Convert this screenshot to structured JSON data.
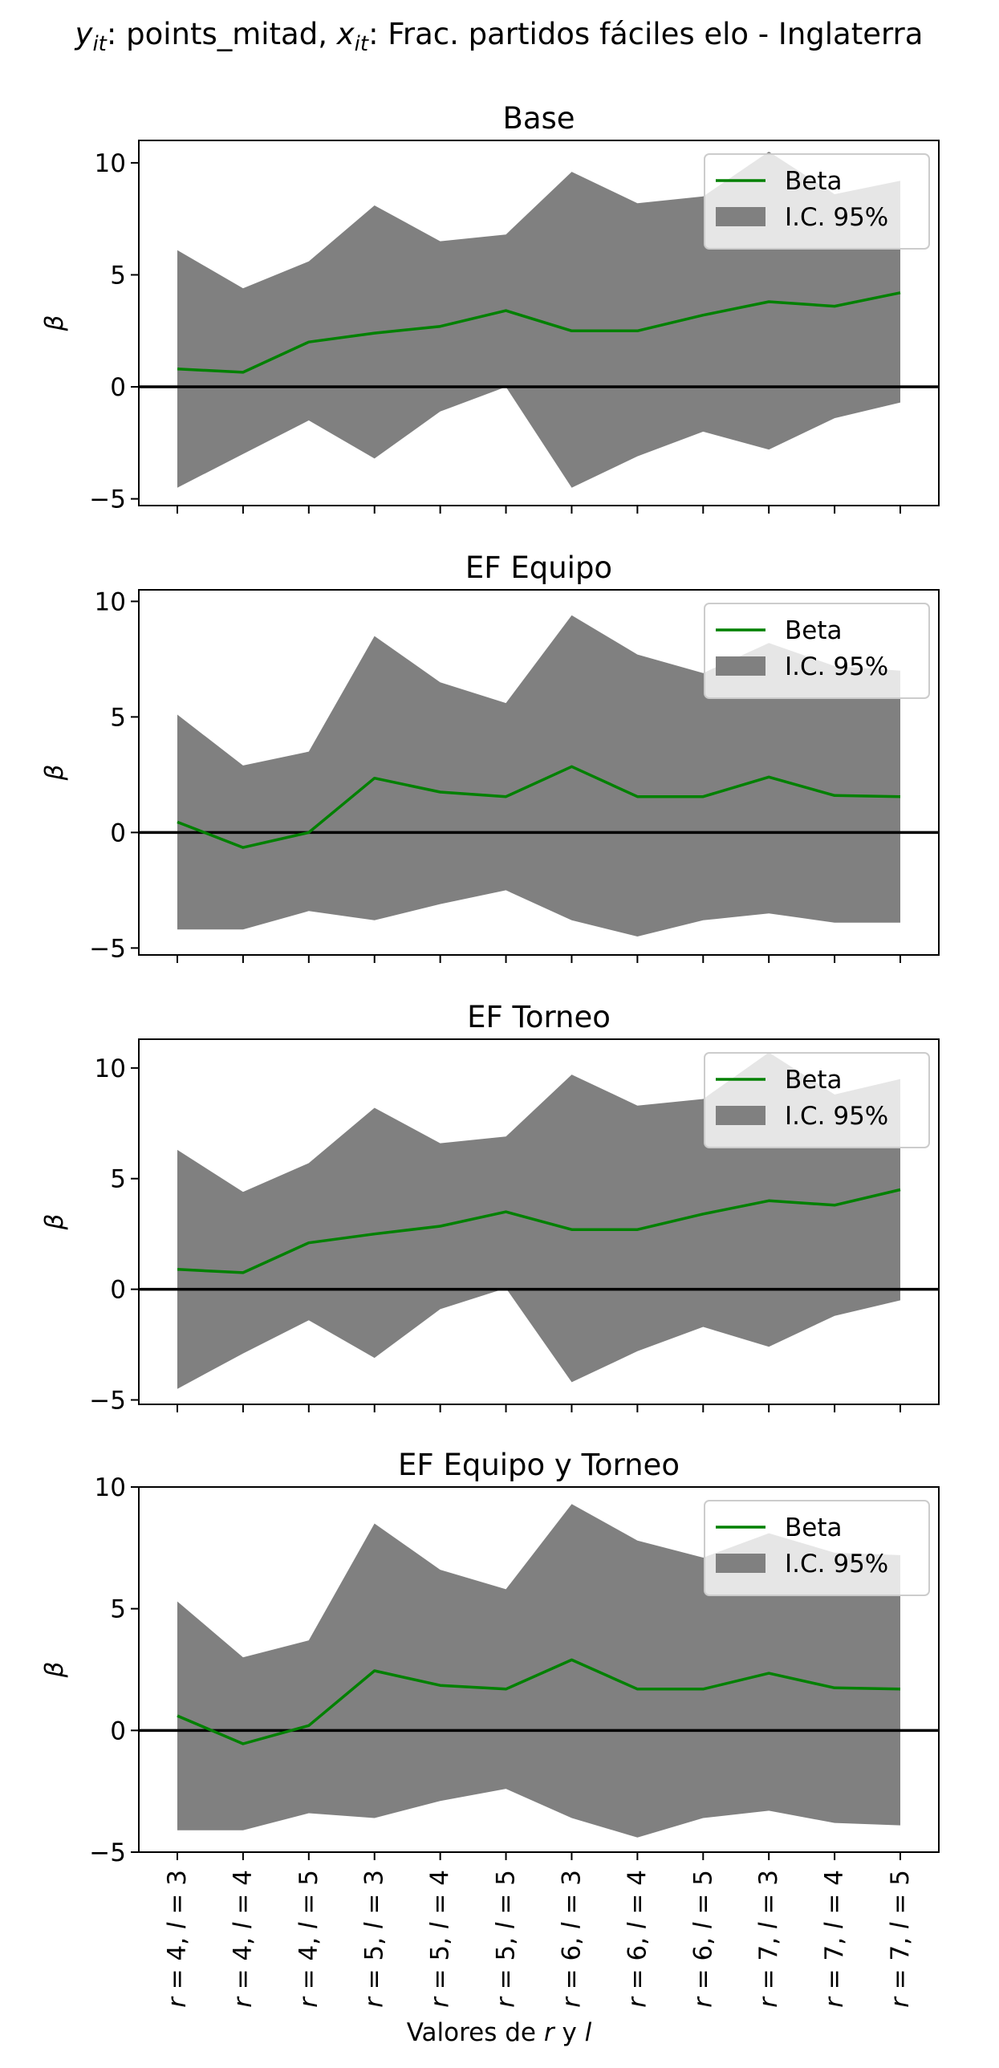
{
  "figure": {
    "suptitle": "yit: points_mitad, xit: Frac. partidos fáciles elo - Inglaterra",
    "xlabel": "Valores de r y l",
    "ylabel": "β",
    "legend": {
      "line": "Beta",
      "band": "I.C. 95%",
      "placement": "upper-right"
    }
  },
  "colors": {
    "beta_line": "#008000",
    "ci_band": "#808080",
    "zero_line": "#000000"
  },
  "chart_data": [
    {
      "type": "line",
      "title": "Base",
      "ylabel": "β",
      "ylim": [
        -5.3,
        11
      ],
      "yticks": [
        "10",
        "5",
        "0",
        "−5"
      ],
      "yticks_values": [
        10,
        5,
        0,
        -5
      ],
      "categories": [
        "r = 4, l = 3",
        "r = 4, l = 4",
        "r = 4, l = 5",
        "r = 5, l = 3",
        "r = 5, l = 4",
        "r = 5, l = 5",
        "r = 6, l = 3",
        "r = 6, l = 4",
        "r = 6, l = 5",
        "r = 7, l = 3",
        "r = 7, l = 4",
        "r = 7, l = 5"
      ],
      "series": [
        {
          "name": "Beta",
          "values": [
            0.8,
            0.65,
            2.0,
            2.4,
            2.7,
            3.4,
            2.5,
            2.5,
            3.2,
            3.8,
            3.6,
            4.2
          ]
        },
        {
          "name": "I.C. 95%",
          "upper": [
            6.1,
            4.4,
            5.6,
            8.1,
            6.5,
            6.8,
            9.6,
            8.2,
            8.5,
            10.5,
            8.6,
            9.2
          ],
          "lower": [
            -4.5,
            -3.0,
            -1.5,
            -3.2,
            -1.1,
            0.0,
            -4.5,
            -3.1,
            -2.0,
            -2.8,
            -1.4,
            -0.7
          ]
        }
      ]
    },
    {
      "type": "line",
      "title": "EF Equipo",
      "ylabel": "β",
      "ylim": [
        -5.3,
        10.5
      ],
      "yticks": [
        "10",
        "5",
        "0",
        "−5"
      ],
      "yticks_values": [
        10,
        5,
        0,
        -5
      ],
      "categories": [
        "r = 4, l = 3",
        "r = 4, l = 4",
        "r = 4, l = 5",
        "r = 5, l = 3",
        "r = 5, l = 4",
        "r = 5, l = 5",
        "r = 6, l = 3",
        "r = 6, l = 4",
        "r = 6, l = 5",
        "r = 7, l = 3",
        "r = 7, l = 4",
        "r = 7, l = 5"
      ],
      "series": [
        {
          "name": "Beta",
          "values": [
            0.45,
            -0.65,
            0.0,
            2.35,
            1.75,
            1.55,
            2.85,
            1.55,
            1.55,
            2.4,
            1.6,
            1.55
          ]
        },
        {
          "name": "I.C. 95%",
          "upper": [
            5.1,
            2.9,
            3.5,
            8.5,
            6.5,
            5.6,
            9.4,
            7.7,
            6.9,
            8.2,
            7.2,
            7.0
          ],
          "lower": [
            -4.2,
            -4.2,
            -3.4,
            -3.8,
            -3.1,
            -2.5,
            -3.8,
            -4.5,
            -3.8,
            -3.5,
            -3.9,
            -3.9
          ]
        }
      ]
    },
    {
      "type": "line",
      "title": "EF Torneo",
      "ylabel": "β",
      "ylim": [
        -5.2,
        11.3
      ],
      "yticks": [
        "10",
        "5",
        "0",
        "−5"
      ],
      "yticks_values": [
        10,
        5,
        0,
        -5
      ],
      "categories": [
        "r = 4, l = 3",
        "r = 4, l = 4",
        "r = 4, l = 5",
        "r = 5, l = 3",
        "r = 5, l = 4",
        "r = 5, l = 5",
        "r = 6, l = 3",
        "r = 6, l = 4",
        "r = 6, l = 5",
        "r = 7, l = 3",
        "r = 7, l = 4",
        "r = 7, l = 5"
      ],
      "series": [
        {
          "name": "Beta",
          "values": [
            0.9,
            0.75,
            2.1,
            2.5,
            2.85,
            3.5,
            2.7,
            2.7,
            3.4,
            4.0,
            3.8,
            4.5
          ]
        },
        {
          "name": "I.C. 95%",
          "upper": [
            6.3,
            4.4,
            5.7,
            8.2,
            6.6,
            6.9,
            9.7,
            8.3,
            8.6,
            10.7,
            8.8,
            9.5
          ],
          "lower": [
            -4.5,
            -2.9,
            -1.4,
            -3.1,
            -0.9,
            0.05,
            -4.2,
            -2.8,
            -1.7,
            -2.6,
            -1.2,
            -0.5
          ]
        }
      ]
    },
    {
      "type": "line",
      "title": "EF Equipo y Torneo",
      "ylabel": "β",
      "ylim": [
        -5.0,
        10.0
      ],
      "yticks": [
        "10",
        "5",
        "0",
        "−5"
      ],
      "yticks_values": [
        10,
        5,
        0,
        -5
      ],
      "categories": [
        "r = 4, l = 3",
        "r = 4, l = 4",
        "r = 4, l = 5",
        "r = 5, l = 3",
        "r = 5, l = 4",
        "r = 5, l = 5",
        "r = 6, l = 3",
        "r = 6, l = 4",
        "r = 6, l = 5",
        "r = 7, l = 3",
        "r = 7, l = 4",
        "r = 7, l = 5"
      ],
      "series": [
        {
          "name": "Beta",
          "values": [
            0.6,
            -0.55,
            0.2,
            2.45,
            1.85,
            1.7,
            2.9,
            1.7,
            1.7,
            2.35,
            1.75,
            1.7
          ]
        },
        {
          "name": "I.C. 95%",
          "upper": [
            5.3,
            3.0,
            3.7,
            8.5,
            6.6,
            5.8,
            9.3,
            7.8,
            7.1,
            8.1,
            7.3,
            7.2
          ],
          "lower": [
            -4.1,
            -4.1,
            -3.4,
            -3.6,
            -2.9,
            -2.4,
            -3.6,
            -4.4,
            -3.6,
            -3.3,
            -3.8,
            -3.9
          ]
        }
      ]
    }
  ]
}
